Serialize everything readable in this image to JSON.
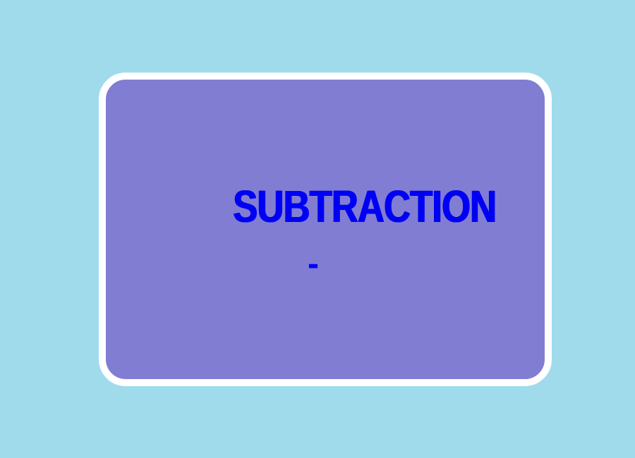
{
  "card": {
    "title": "SUBTRACTION",
    "symbol": "-"
  },
  "colors": {
    "background": "#a0dbec",
    "card": "#817dd2",
    "border": "#ffffff",
    "text": "#0000f5"
  }
}
